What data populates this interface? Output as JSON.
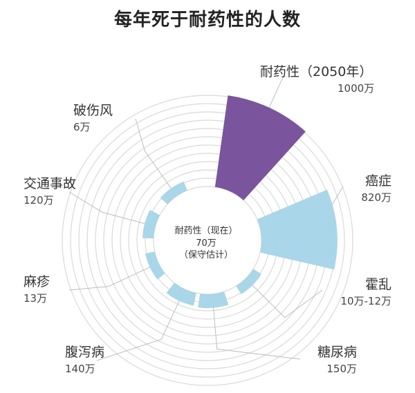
{
  "chart_data": {
    "type": "polar-bar",
    "title": "每年死于耐药性的人数",
    "center": {
      "label": "耐药性（现在）",
      "value": "70万",
      "note": "（保守估计）"
    },
    "categories": [
      "耐药性（2050年）",
      "癌症",
      "霍乱",
      "糖尿病",
      "腹泻病",
      "麻疹",
      "交通事故",
      "破伤风"
    ],
    "value_labels": [
      "1000万",
      "820万",
      "10万-12万",
      "150万",
      "140万",
      "13万",
      "120万",
      "6万"
    ],
    "values": [
      1000,
      820,
      11,
      150,
      140,
      13,
      120,
      6
    ],
    "unit": "万",
    "colors": {
      "highlight": "#7a559e",
      "bars": "#a9d6e8",
      "grid": "#d9d9d9",
      "leader": "#bdbdbd"
    }
  }
}
